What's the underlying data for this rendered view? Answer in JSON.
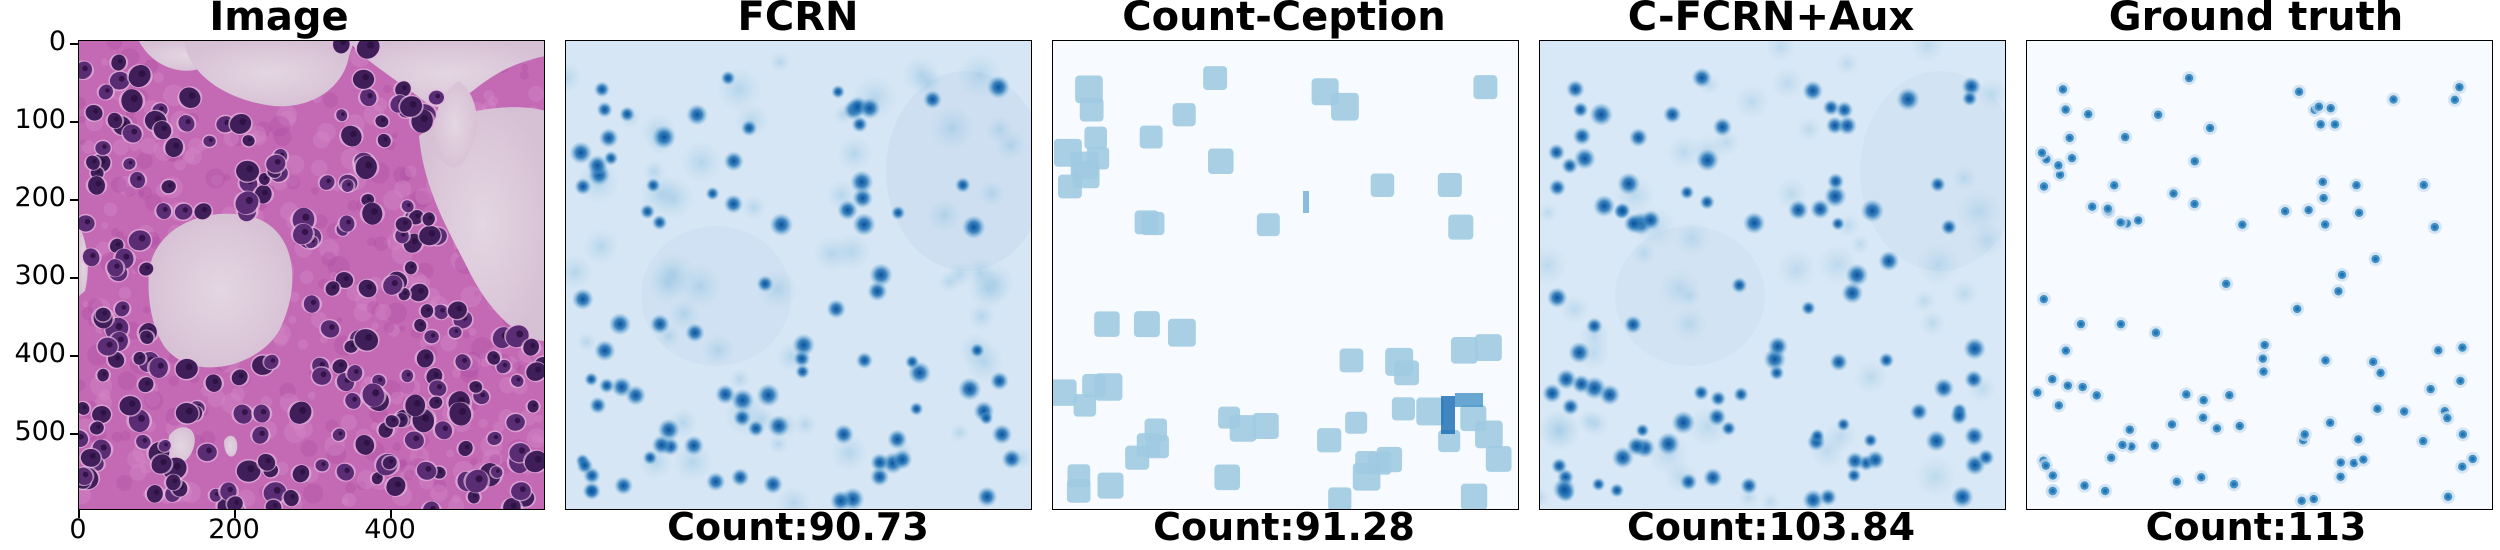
{
  "panels": [
    {
      "title": "Image",
      "count": ""
    },
    {
      "title": "FCRN",
      "count": "Count:90.73"
    },
    {
      "title": "Count-Ception",
      "count": "Count:91.28"
    },
    {
      "title": "C-FCRN+Aux",
      "count": "Count:103.84"
    },
    {
      "title": "Ground truth",
      "count": "Count:113"
    }
  ],
  "axes": {
    "y_ticks": [
      "0",
      "100",
      "200",
      "300",
      "400",
      "500"
    ],
    "x_ticks": [
      "0",
      "200",
      "400"
    ]
  },
  "colors": {
    "tissue_pink": "#c867b6",
    "nuclei_purple": "#3f1e5a",
    "map_blue_dark": "#08519c",
    "map_blue_light": "#9ecae1",
    "map_background": "#f7fbff"
  }
}
